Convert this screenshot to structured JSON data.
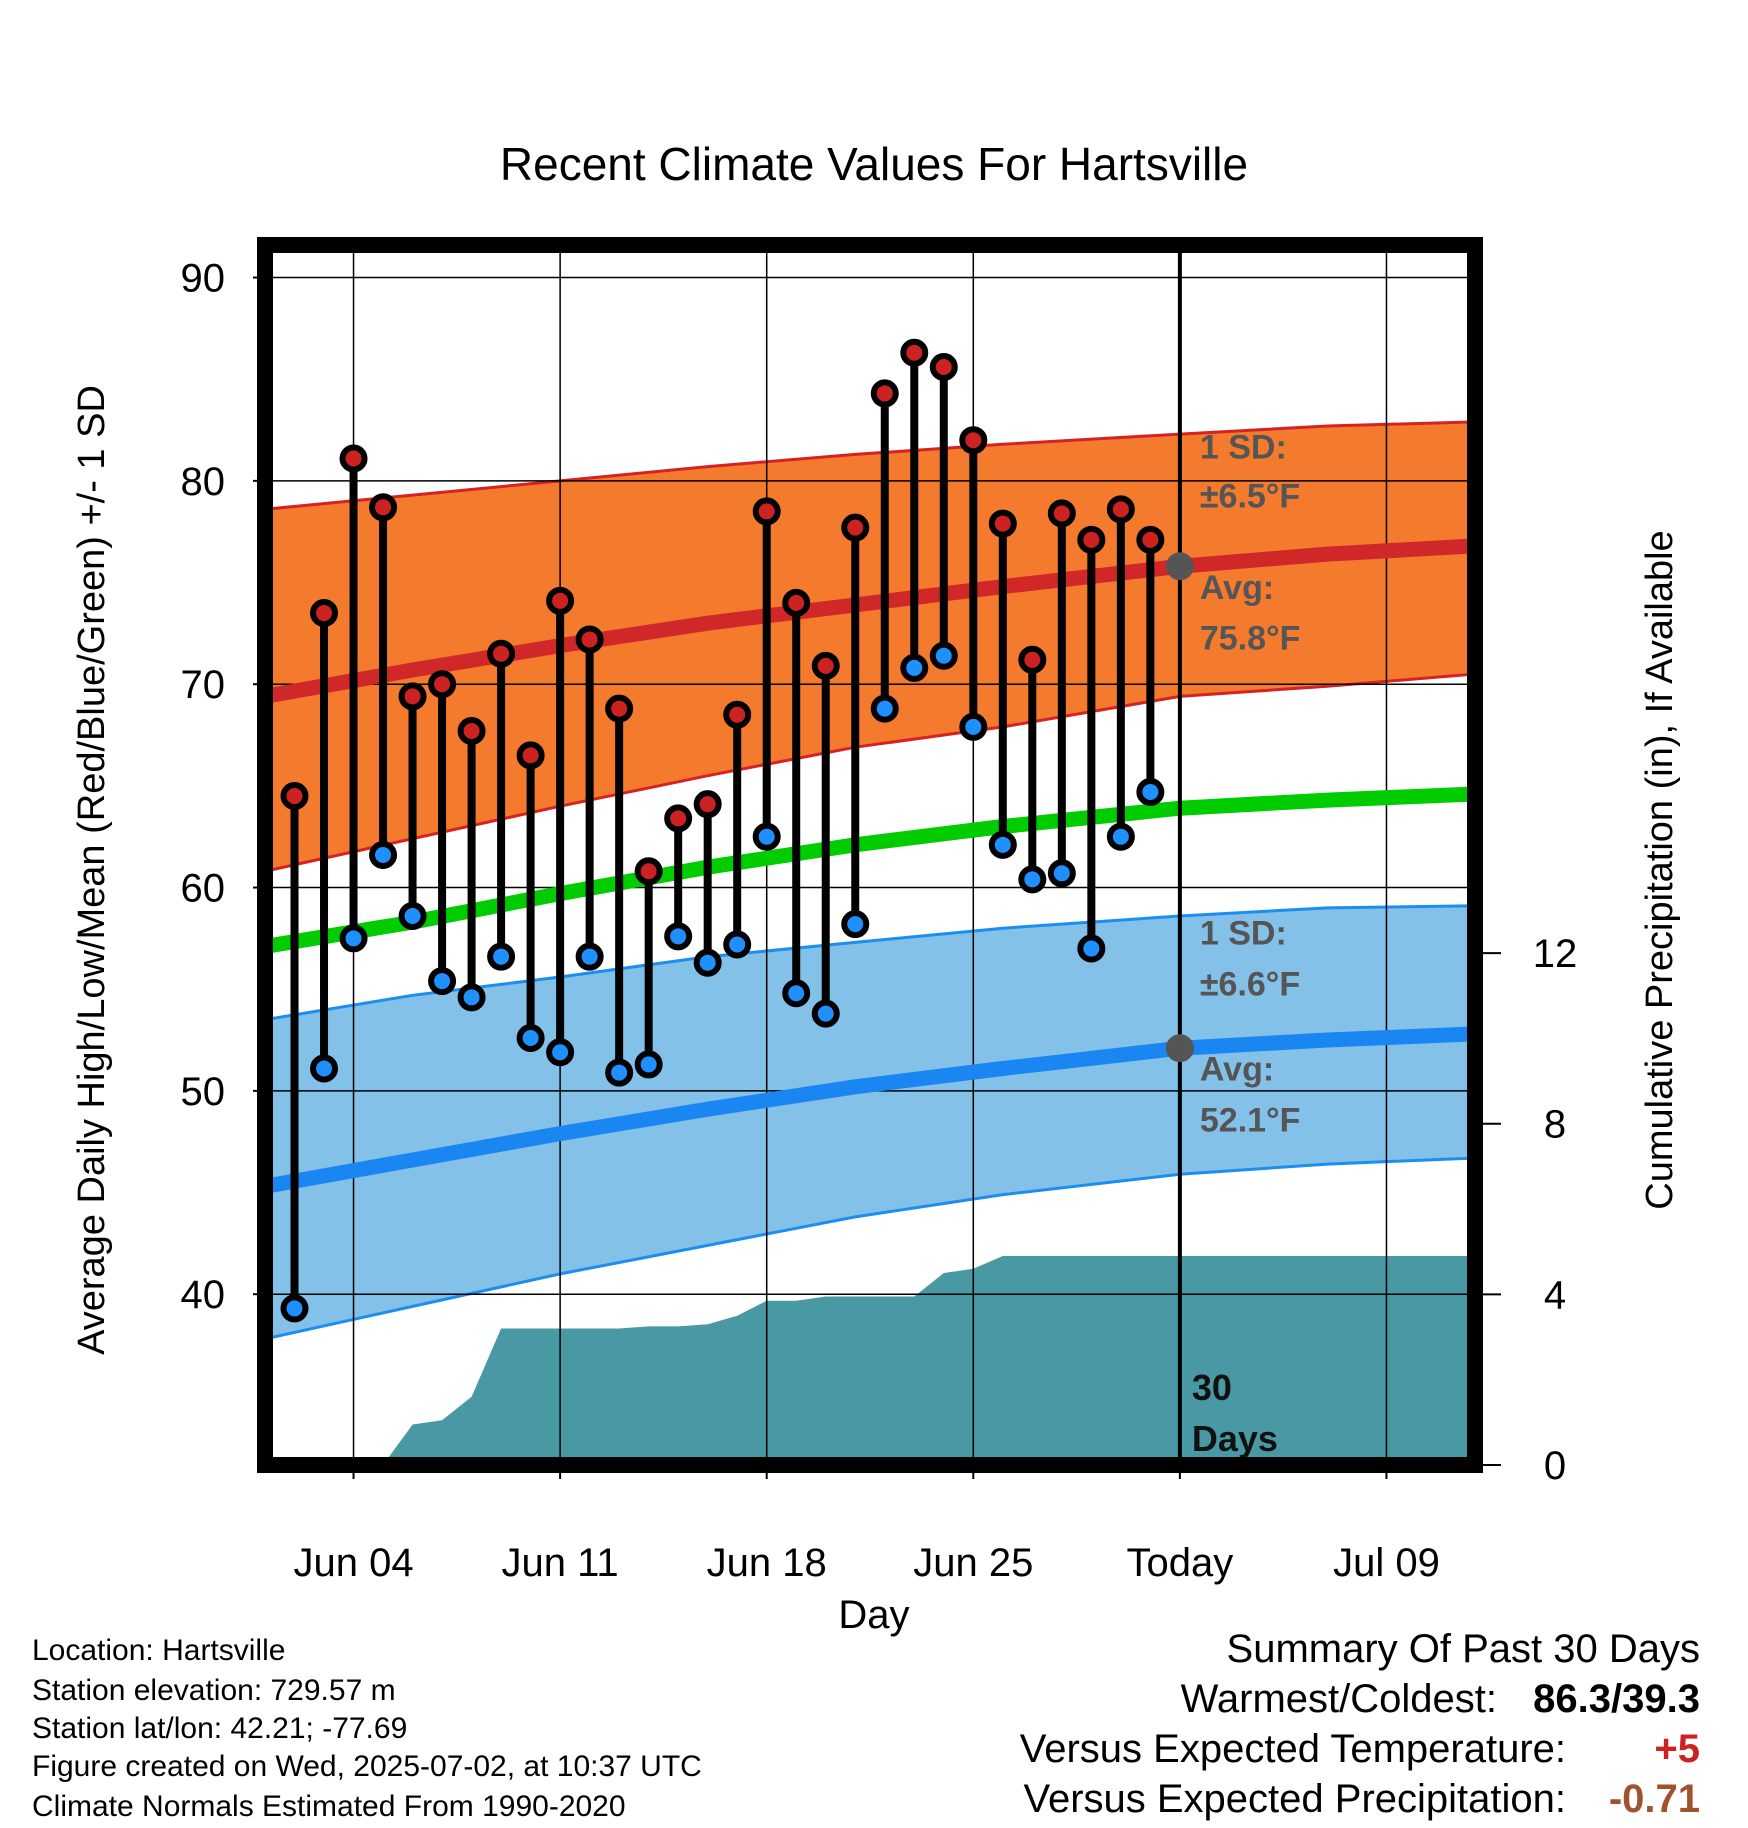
{
  "chart_data": {
    "type": "line",
    "title": "Recent Climate Values For Hartsville",
    "xlabel": "Day",
    "ylabel": "Average Daily High/Low/Mean (Red/Blue/Green) +/- 1 SD",
    "y2label": "Cumulative Precipitation (in), If Available",
    "ylim": [
      31.6,
      91.6
    ],
    "y2lim": [
      0,
      28.6
    ],
    "xlim": [
      0,
      41
    ],
    "x_ticks": [
      {
        "x": 3,
        "label": "Jun 04"
      },
      {
        "x": 10,
        "label": "Jun 11"
      },
      {
        "x": 17,
        "label": "Jun 18"
      },
      {
        "x": 24,
        "label": "Jun 25"
      },
      {
        "x": 31,
        "label": "Today"
      },
      {
        "x": 38,
        "label": "Jul 09"
      }
    ],
    "y_ticks": [
      40,
      50,
      60,
      70,
      80,
      90
    ],
    "y2_ticks": [
      0,
      4,
      8,
      12
    ],
    "today_x": 31,
    "today_label_number": "30",
    "today_label_word": "Days",
    "grid": true,
    "colors": {
      "high_band": "#f47a2e",
      "high_band_edge": "#d62222",
      "high_avg_line": "#d02828",
      "mean_line": "#00cc00",
      "low_band": "#84c1e8",
      "low_band_edge": "#1c8ef0",
      "low_avg_line": "#1a86f2",
      "precip": "#4899a3",
      "high_dot": "#cc2222",
      "low_dot": "#1e90ff",
      "marker": "#555555",
      "annotation": "#555555"
    },
    "normals": {
      "x": [
        0,
        5,
        10,
        15,
        20,
        25,
        31,
        36,
        41
      ],
      "high_avg": [
        69.4,
        70.7,
        71.9,
        73.0,
        73.9,
        74.8,
        75.8,
        76.4,
        76.8
      ],
      "high_sd_upper": [
        78.6,
        79.3,
        80.0,
        80.7,
        81.3,
        81.8,
        82.3,
        82.7,
        82.9
      ],
      "high_sd_lower": [
        60.8,
        62.4,
        64.0,
        65.5,
        66.9,
        67.9,
        69.4,
        69.9,
        70.5
      ],
      "mean": [
        57.1,
        58.3,
        59.7,
        61.0,
        62.1,
        63.0,
        63.9,
        64.3,
        64.6
      ],
      "low_avg": [
        45.3,
        46.6,
        47.9,
        49.1,
        50.2,
        51.1,
        52.1,
        52.5,
        52.8
      ],
      "low_sd_upper": [
        53.5,
        54.7,
        55.6,
        56.6,
        57.3,
        58.0,
        58.6,
        59.0,
        59.1
      ],
      "low_sd_lower": [
        37.8,
        39.4,
        41.0,
        42.4,
        43.8,
        44.9,
        45.9,
        46.4,
        46.7
      ]
    },
    "series": [
      {
        "name": "High",
        "x": [
          1,
          2,
          3,
          4,
          5,
          6,
          7,
          8,
          9,
          10,
          11,
          12,
          13,
          14,
          15,
          16,
          17,
          18,
          19,
          20,
          21,
          22,
          23,
          24,
          25,
          26,
          27,
          28,
          29,
          30
        ],
        "values": [
          64.5,
          73.5,
          81.1,
          78.7,
          69.4,
          70.0,
          67.7,
          71.5,
          66.5,
          74.1,
          72.2,
          68.8,
          60.8,
          63.4,
          64.1,
          68.5,
          78.5,
          74.0,
          70.9,
          77.7,
          84.3,
          86.3,
          85.6,
          82.0,
          77.9,
          71.2,
          78.4,
          77.1,
          78.6,
          77.1
        ]
      },
      {
        "name": "Low",
        "x": [
          1,
          2,
          3,
          4,
          5,
          6,
          7,
          8,
          9,
          10,
          11,
          12,
          13,
          14,
          15,
          16,
          17,
          18,
          19,
          20,
          21,
          22,
          23,
          24,
          25,
          26,
          27,
          28,
          29,
          30
        ],
        "values": [
          39.3,
          51.1,
          57.5,
          61.6,
          58.6,
          55.4,
          54.6,
          56.6,
          52.6,
          51.9,
          56.6,
          50.9,
          51.3,
          57.6,
          56.3,
          57.2,
          62.5,
          54.8,
          53.8,
          58.2,
          68.8,
          70.8,
          71.4,
          67.9,
          62.1,
          60.4,
          60.7,
          57.0,
          62.5,
          64.7
        ]
      }
    ],
    "precip_cumulative": {
      "x": [
        4,
        5,
        6,
        7,
        8,
        9,
        10,
        11,
        12,
        13,
        14,
        15,
        16,
        17,
        18,
        19,
        20,
        21,
        22,
        23,
        24,
        25,
        26,
        27,
        28,
        29,
        30,
        31,
        41
      ],
      "values": [
        0.0,
        0.95,
        1.05,
        1.6,
        3.2,
        3.2,
        3.2,
        3.2,
        3.2,
        3.25,
        3.25,
        3.3,
        3.5,
        3.85,
        3.85,
        3.95,
        3.95,
        3.95,
        3.95,
        4.5,
        4.6,
        4.9,
        4.9,
        4.9,
        4.9,
        4.9,
        4.9,
        4.9,
        4.9
      ]
    },
    "annotations": {
      "high_sd_label": "1 SD:",
      "high_sd_value": "±6.5°F",
      "high_avg_label": "Avg:",
      "high_avg_value": "75.8°F",
      "low_sd_label": "1 SD:",
      "low_sd_value": "±6.6°F",
      "low_avg_label": "Avg:",
      "low_avg_value": "52.1°F"
    }
  },
  "footer": {
    "location": "Location: Hartsville",
    "elevation": "Station elevation: 729.57 m",
    "latlon": "Station lat/lon: 42.21; -77.69",
    "created": "Figure created on Wed, 2025-07-02, at 10:37 UTC",
    "normals": "Climate Normals Estimated From 1990-2020"
  },
  "summary": {
    "title": "Summary Of Past 30 Days",
    "warm_cold_label": "Warmest/Coldest:",
    "warm_cold_value": "86.3/39.3",
    "temp_label": "Versus Expected Temperature:",
    "temp_value": "+5",
    "temp_color": "#cc2222",
    "precip_label": "Versus Expected Precipitation:",
    "precip_value": "-0.71",
    "precip_color": "#a0522d"
  }
}
